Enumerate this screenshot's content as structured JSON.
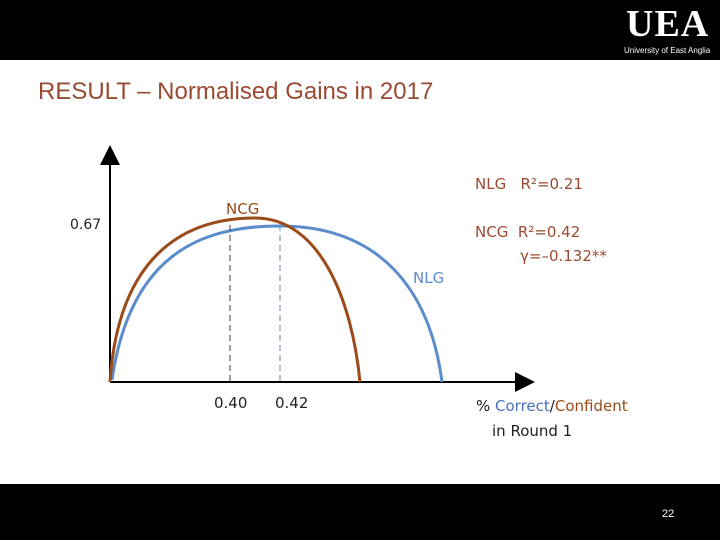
{
  "header": {
    "logo_text": "UEA",
    "logo_subtext": "University of East Anglia"
  },
  "title": "RESULT – Normalised Gains in 2017",
  "page_number": "22",
  "colors": {
    "ncg": "#9b4a1a",
    "nlg": "#5b8ccc",
    "title": "#9a4a32",
    "bar": "#000000"
  },
  "chart_data": {
    "type": "line",
    "series": [
      {
        "name": "NCG",
        "peak_x": 0.4,
        "peak_y": 0.67,
        "color": "#9b4a1a"
      },
      {
        "name": "NLG",
        "peak_x": 0.42,
        "color": "#5b8ccc"
      }
    ],
    "y_tick": "0.67",
    "x_ticks": [
      "0.40",
      "0.42"
    ],
    "curve_labels": {
      "ncg": "NCG",
      "nlg": "NLG"
    },
    "annotations": {
      "nlg_stats": "NLG   R²=0.21",
      "ncg_stats": "NCG  R²=0.42",
      "gamma": "γ=–0.132**"
    },
    "xlabel": {
      "prefix": "% ",
      "correct": "Correct",
      "sep": "/",
      "confident": "Confident",
      "line2": "in Round 1"
    }
  }
}
